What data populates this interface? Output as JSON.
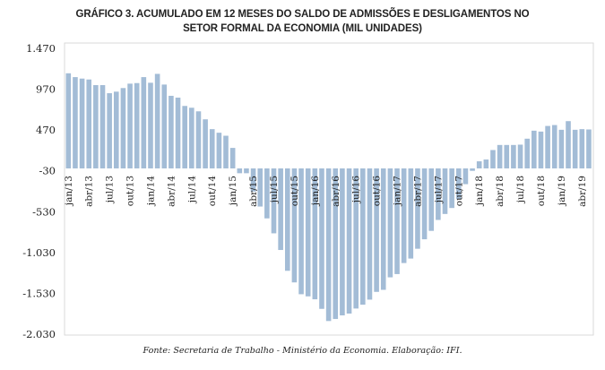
{
  "chart_data": {
    "type": "bar",
    "title": "GRÁFICO 3. ACUMULADO EM 12 MESES DO SALDO DE ADMISSÕES E DESLIGAMENTOS NO",
    "subtitle": "SETOR FORMAL DA ECONOMIA (MIL UNIDADES)",
    "xlabel": "",
    "ylabel": "",
    "ylim": [
      -2030,
      1470
    ],
    "yticks": [
      1470,
      970,
      470,
      -30,
      -530,
      -1030,
      -1530,
      -2030
    ],
    "ytick_labels": [
      "1.470",
      "970",
      "470",
      "-30",
      "-530",
      "-1.030",
      "-1.530",
      "-2.030"
    ],
    "xtick_labels": [
      "jan/13",
      "abr/13",
      "jul/13",
      "out/13",
      "jan/14",
      "abr/14",
      "jul/14",
      "out/14",
      "jan/15",
      "abr/15",
      "jul/15",
      "out/15",
      "jan/16",
      "abr/16",
      "jul/16",
      "out/16",
      "jan/17",
      "abr/17",
      "jul/17",
      "out/17",
      "jan/18",
      "abr/18",
      "jul/18",
      "out/18",
      "jan/19",
      "abr/19"
    ],
    "xtick_every": 3,
    "grid": false,
    "legend": "none",
    "bar_color": "#a3bcd6",
    "categories": [
      "jan/13",
      "fev/13",
      "mar/13",
      "abr/13",
      "mai/13",
      "jun/13",
      "jul/13",
      "ago/13",
      "set/13",
      "out/13",
      "nov/13",
      "dez/13",
      "jan/14",
      "fev/14",
      "mar/14",
      "abr/14",
      "mai/14",
      "jun/14",
      "jul/14",
      "ago/14",
      "set/14",
      "out/14",
      "nov/14",
      "dez/14",
      "jan/15",
      "fev/15",
      "mar/15",
      "abr/15",
      "mai/15",
      "jun/15",
      "jul/15",
      "ago/15",
      "set/15",
      "out/15",
      "nov/15",
      "dez/15",
      "jan/16",
      "fev/16",
      "mar/16",
      "abr/16",
      "mai/16",
      "jun/16",
      "jul/16",
      "ago/16",
      "set/16",
      "out/16",
      "nov/16",
      "dez/16",
      "jan/17",
      "fev/17",
      "mar/17",
      "abr/17",
      "mai/17",
      "jun/17",
      "jul/17",
      "ago/17",
      "set/17",
      "out/17",
      "nov/17",
      "dez/17",
      "jan/18",
      "fev/18",
      "mar/18",
      "abr/18",
      "mai/18",
      "jun/18",
      "jul/18",
      "ago/18",
      "set/18",
      "out/18",
      "nov/18",
      "dez/18",
      "jan/19",
      "fev/19",
      "mar/19",
      "abr/19",
      "mai/19"
    ],
    "values": [
      1165,
      1118,
      1100,
      1089,
      1020,
      1020,
      921,
      940,
      984,
      1038,
      1045,
      1118,
      1049,
      1158,
      1027,
      889,
      867,
      765,
      743,
      699,
      601,
      481,
      437,
      400,
      251,
      -59,
      -59,
      -284,
      -467,
      -612,
      -795,
      -999,
      -1254,
      -1396,
      -1541,
      -1567,
      -1603,
      -1720,
      -1869,
      -1844,
      -1800,
      -1778,
      -1716,
      -1669,
      -1607,
      -1512,
      -1487,
      -1334,
      -1294,
      -1159,
      -1104,
      -984,
      -868,
      -765,
      -631,
      -558,
      -485,
      -379,
      -193,
      -30,
      87,
      109,
      225,
      287,
      287,
      287,
      291,
      364,
      462,
      451,
      520,
      531,
      473,
      579,
      473,
      481,
      477
    ]
  },
  "source": "Fonte: Secretaria de Trabalho - Ministério da Economia. Elaboração: IFI."
}
